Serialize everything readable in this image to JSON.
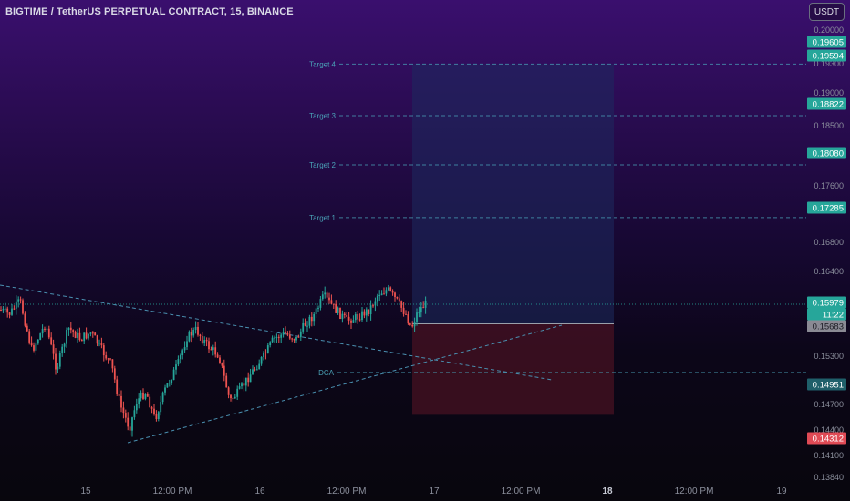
{
  "header": {
    "symbol_title": "BIGTIME / TetherUS PERPETUAL CONTRACT, 15, BINANCE",
    "currency_button": "USDT"
  },
  "colors": {
    "bg_top": "#3a0f6e",
    "bg_bottom": "#08060d",
    "up_candle": "#26a69a",
    "down_candle": "#ef5350",
    "target_badge": "#26a69a",
    "stop_badge": "#e04a55",
    "entry_badge": "#8a8a94",
    "dca_badge": "#1f5f6a",
    "profit_zone": "#1e2a5e",
    "loss_zone": "#4a1322",
    "axis_text": "#8b8f9c",
    "level_line": "#4aa3b8"
  },
  "chart_data": {
    "type": "candlestick",
    "interval": "15",
    "y_axis_ticks": [
      "0.20000",
      "0.19300",
      "0.19000",
      "0.18500",
      "0.17600",
      "0.16800",
      "0.16400",
      "0.15300",
      "0.14700",
      "0.14400",
      "0.14100",
      "0.13840"
    ],
    "x_axis_ticks": [
      {
        "label": "15",
        "bold": false
      },
      {
        "label": "12:00 PM",
        "bold": false
      },
      {
        "label": "16",
        "bold": false
      },
      {
        "label": "12:00 PM",
        "bold": false
      },
      {
        "label": "17",
        "bold": false
      },
      {
        "label": "12:00 PM",
        "bold": false
      },
      {
        "label": "18",
        "bold": true
      },
      {
        "label": "12:00 PM",
        "bold": false
      },
      {
        "label": "19",
        "bold": false
      }
    ],
    "price_badges": [
      {
        "value": "0.19605",
        "kind": "target"
      },
      {
        "value": "0.19594",
        "kind": "target"
      },
      {
        "value": "0.18822",
        "kind": "target"
      },
      {
        "value": "0.18080",
        "kind": "target"
      },
      {
        "value": "0.17285",
        "kind": "target"
      },
      {
        "value": "0.15979",
        "kind": "current"
      },
      {
        "value": "11:22",
        "kind": "countdown"
      },
      {
        "value": "0.15683",
        "kind": "entry"
      },
      {
        "value": "0.14951",
        "kind": "dca"
      },
      {
        "value": "0.14312",
        "kind": "stop"
      }
    ],
    "levels": [
      {
        "label": "Target 4",
        "price": 0.196
      },
      {
        "label": "Target 3",
        "price": 0.18822
      },
      {
        "label": "Target 2",
        "price": 0.1808
      },
      {
        "label": "Target 1",
        "price": 0.17285
      },
      {
        "label": "DCA",
        "price": 0.14951
      }
    ],
    "current_price": 0.15979,
    "entry_price": 0.15683,
    "stop_price": 0.14312,
    "target_price": 0.196
  }
}
